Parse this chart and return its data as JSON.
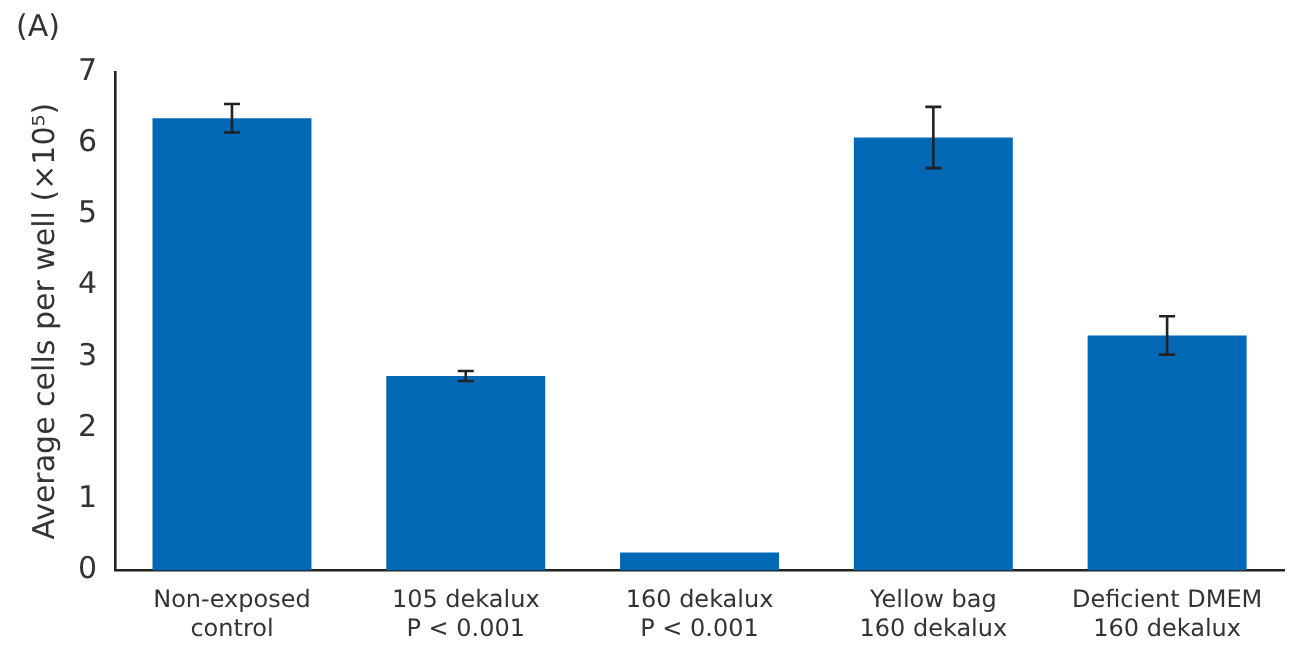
{
  "chart_data": {
    "type": "bar",
    "title": "(A)",
    "ylabel": "Average cells per well (×10⁵)",
    "categories": [
      "Non-exposed\ncontrol",
      "105 dekalux\nP < 0.001",
      "160 dekalux\nP < 0.001",
      "Yellow bag\n160 dekalux",
      "Deficient DMEM\n160 dekalux"
    ],
    "values": [
      6.35,
      2.73,
      0.25,
      6.08,
      3.3
    ],
    "errors": [
      0.2,
      0.07,
      null,
      0.43,
      0.27
    ],
    "color": "#0068b5",
    "ylim": [
      0,
      7
    ],
    "yticks": [
      0,
      1,
      2,
      3,
      4,
      5,
      6,
      7
    ],
    "grid": false,
    "legend": false
  }
}
